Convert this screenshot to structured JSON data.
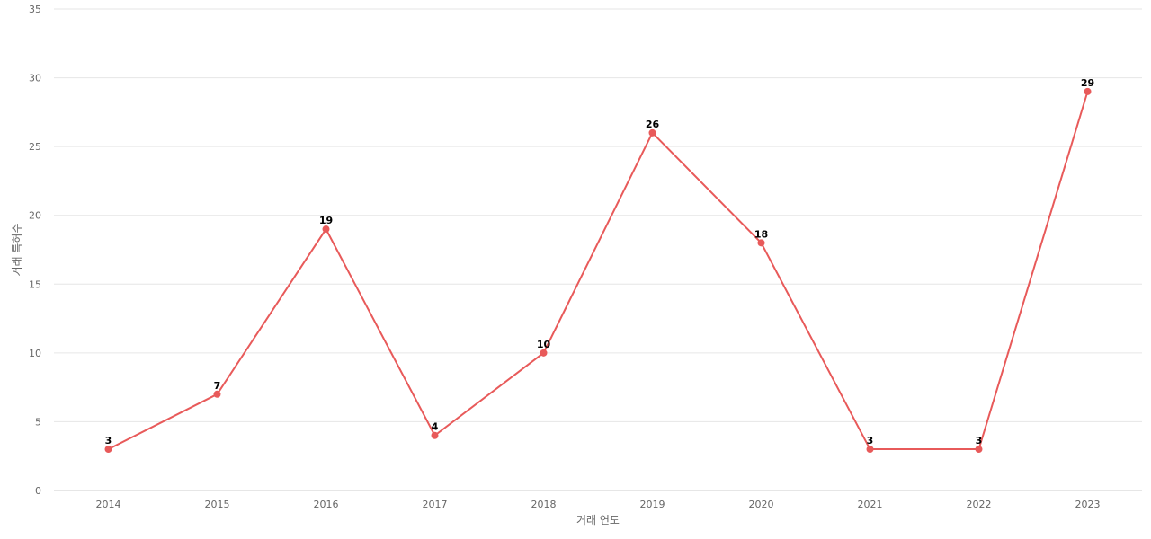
{
  "chart_data": {
    "type": "line",
    "categories": [
      "2014",
      "2015",
      "2016",
      "2017",
      "2018",
      "2019",
      "2020",
      "2021",
      "2022",
      "2023"
    ],
    "series": [
      {
        "values": [
          3,
          7,
          19,
          4,
          10,
          26,
          18,
          3,
          3,
          29
        ]
      }
    ],
    "xlabel": "거래 연도",
    "ylabel": "거래 특허수",
    "ylim": [
      0,
      35
    ],
    "yticks": [
      0,
      5,
      10,
      15,
      20,
      25,
      30,
      35
    ],
    "grid": true,
    "legend": "none",
    "colors": {
      "line": "#e85a5a",
      "marker": "#e85a5a",
      "grid": "#e6e6e6",
      "text": "#666666"
    }
  }
}
